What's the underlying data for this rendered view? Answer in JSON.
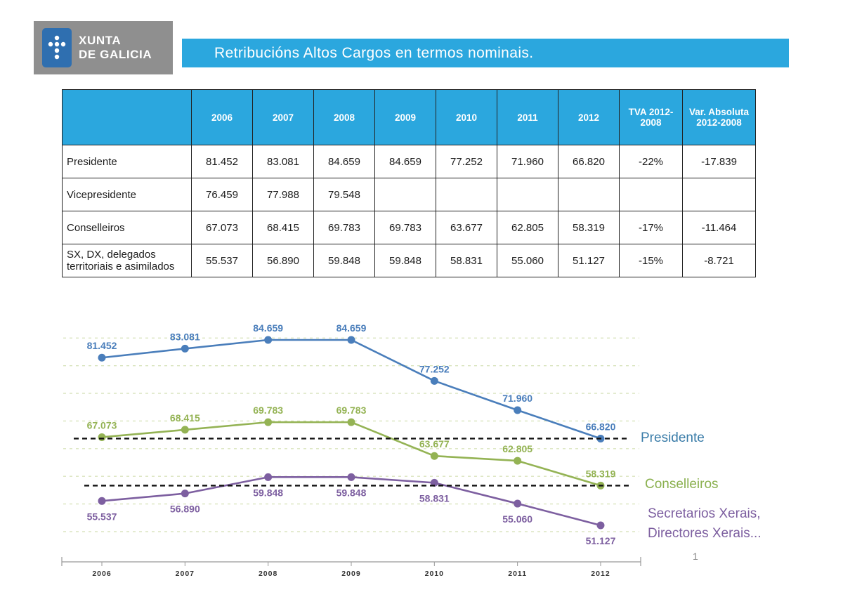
{
  "header": {
    "logo_line1": "XUNTA",
    "logo_line2": "DE GALICIA",
    "title": "Retribucións Altos Cargos en termos nominais."
  },
  "table": {
    "columns": [
      "",
      "2006",
      "2007",
      "2008",
      "2009",
      "2010",
      "2011",
      "2012",
      "TVA 2012-2008",
      "Var. Absoluta 2012-2008"
    ],
    "rows": [
      {
        "label": "Presidente",
        "values": [
          "81.452",
          "83.081",
          "84.659",
          "84.659",
          "77.252",
          "71.960",
          "66.820",
          "-22%",
          "-17.839"
        ]
      },
      {
        "label": "Vicepresidente",
        "values": [
          "76.459",
          "77.988",
          "79.548",
          "",
          "",
          "",
          "",
          "",
          ""
        ]
      },
      {
        "label": "Conselleiros",
        "values": [
          "67.073",
          "68.415",
          "69.783",
          "69.783",
          "63.677",
          "62.805",
          "58.319",
          "-17%",
          "-11.464"
        ]
      },
      {
        "label": "SX, DX, delegados territoriais e asimilados",
        "values": [
          "55.537",
          "56.890",
          "59.848",
          "59.848",
          "58.831",
          "55.060",
          "51.127",
          "-15%",
          "-8.721"
        ]
      }
    ]
  },
  "chart_data": {
    "type": "line",
    "title": "Retribucións Altos Cargos en termos nominais.",
    "x": [
      "2006",
      "2007",
      "2008",
      "2009",
      "2010",
      "2011",
      "2012"
    ],
    "series": [
      {
        "name": "Presidente",
        "color": "#4a7ebb",
        "values": [
          81452,
          83081,
          84659,
          84659,
          77252,
          71960,
          66820
        ],
        "labels": [
          "81.452",
          "83.081",
          "84.659",
          "84.659",
          "77.252",
          "71.960",
          "66.820"
        ],
        "label_position": "above"
      },
      {
        "name": "Conselleiros",
        "color": "#94b354",
        "values": [
          67073,
          68415,
          69783,
          69783,
          63677,
          62805,
          58319
        ],
        "labels": [
          "67.073",
          "68.415",
          "69.783",
          "69.783",
          "63.677",
          "62.805",
          "58.319"
        ],
        "label_position": "above"
      },
      {
        "name": "Secretarios Xerais, Directores Xerais...",
        "color": "#7d5fa0",
        "values": [
          55537,
          56890,
          59848,
          59848,
          58831,
          55060,
          51127
        ],
        "labels": [
          "55.537",
          "56.890",
          "59.848",
          "59.848",
          "58.831",
          "55.060",
          "51.127"
        ],
        "label_position": "below"
      }
    ],
    "reference_lines": [
      66820,
      58319
    ],
    "ylim": [
      48000,
      90000
    ],
    "grid": "horizontal-dashed",
    "legend_position": "right",
    "legend": [
      {
        "text": "Presidente",
        "color": "#3a7ca8"
      },
      {
        "text": "Conselleiros",
        "color": "#8ab04e"
      },
      {
        "text": "Secretarios Xerais,\nDirectores Xerais...",
        "color": "#7d5fa0"
      }
    ]
  },
  "page_number": "1"
}
